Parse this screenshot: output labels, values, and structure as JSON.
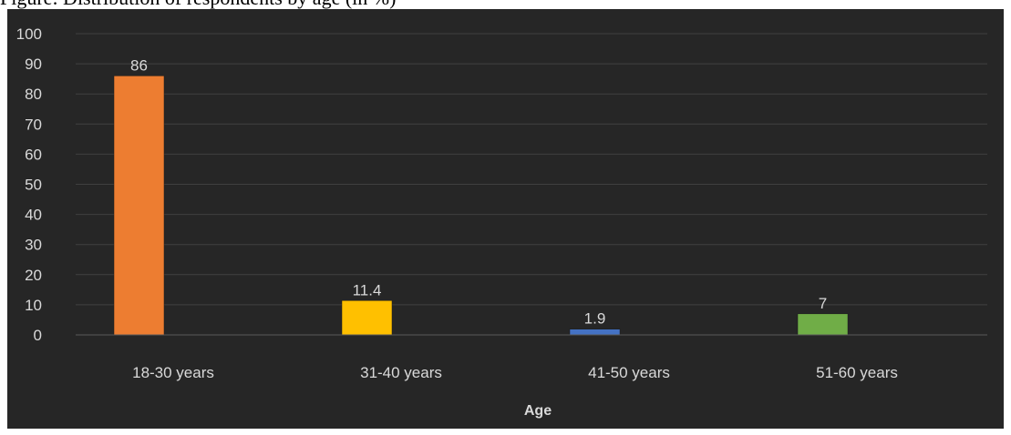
{
  "chart_data": {
    "type": "bar",
    "title": "Figure: Distribution of respondents by age (in %)",
    "xlabel": "Age",
    "ylabel": "",
    "categories": [
      "18-30 years",
      "31-40 years",
      "41-50 years",
      "51-60 years"
    ],
    "values": [
      86,
      11.4,
      1.9,
      7
    ],
    "value_labels": [
      "86",
      "11.4",
      "1.9",
      "7"
    ],
    "colors": [
      "#ed7d31",
      "#ffc000",
      "#4472c4",
      "#70ad47"
    ],
    "ylim": [
      0,
      100
    ],
    "yticks": [
      0,
      10,
      20,
      30,
      40,
      50,
      60,
      70,
      80,
      90,
      100
    ],
    "grid": true,
    "legend": "none",
    "background": "#262626"
  }
}
